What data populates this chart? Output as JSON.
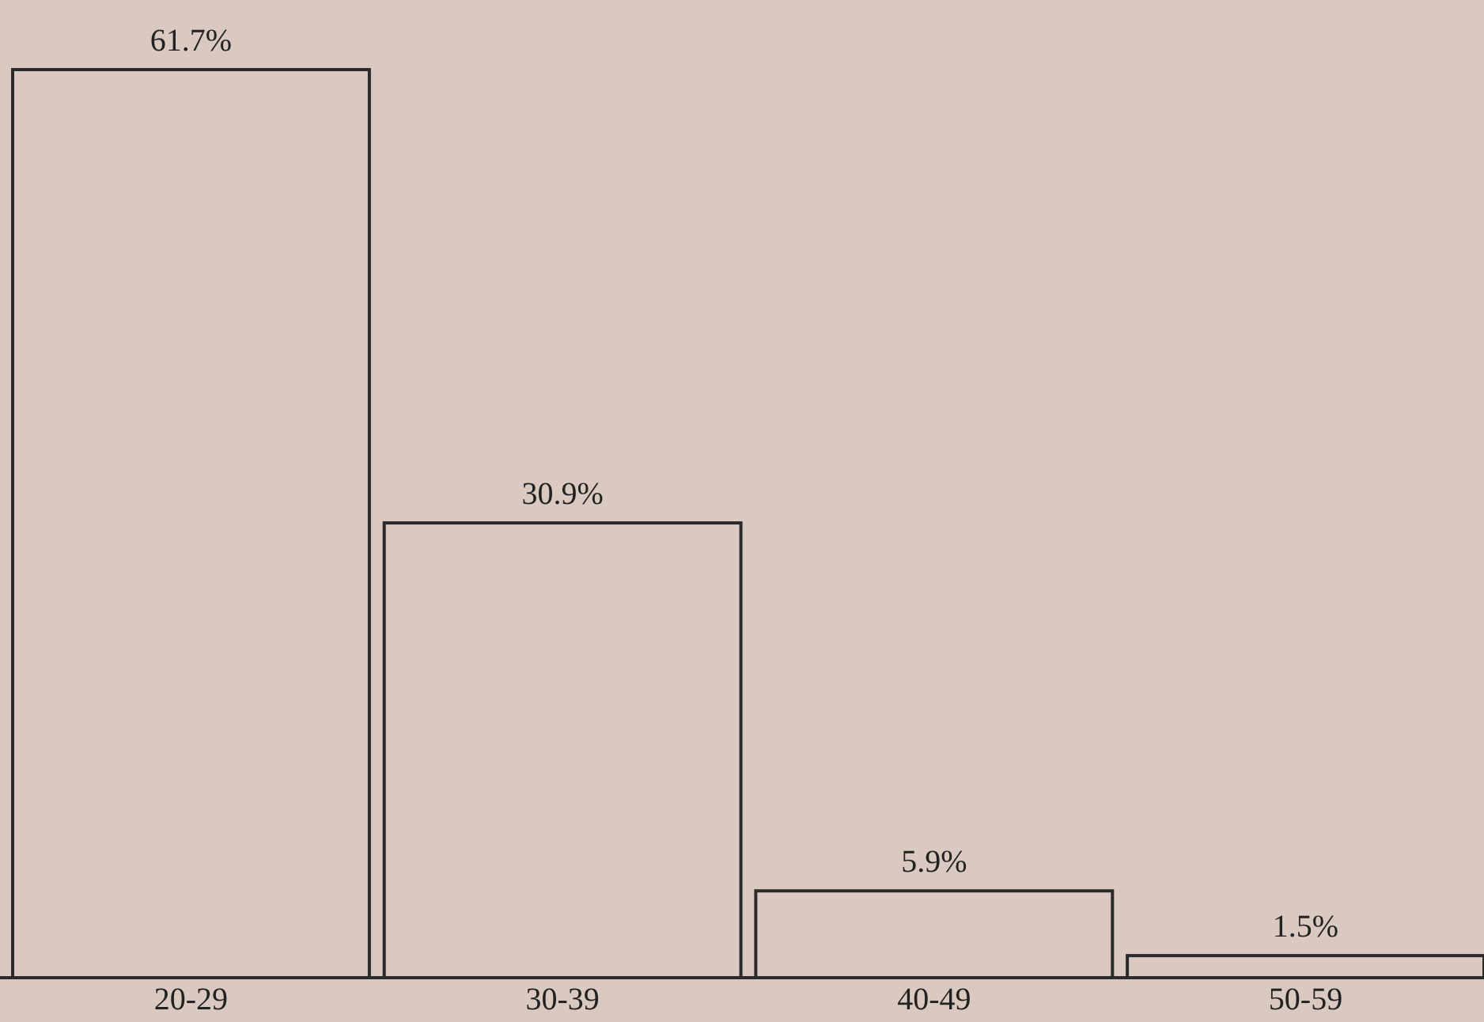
{
  "chart_data": {
    "type": "bar",
    "categories": [
      "20-29",
      "30-39",
      "40-49",
      "50-59"
    ],
    "values": [
      61.7,
      30.9,
      5.9,
      1.5
    ],
    "value_labels": [
      "61.7%",
      "30.9%",
      "5.9%",
      "1.5%"
    ],
    "color": "#2b2b2b"
  }
}
